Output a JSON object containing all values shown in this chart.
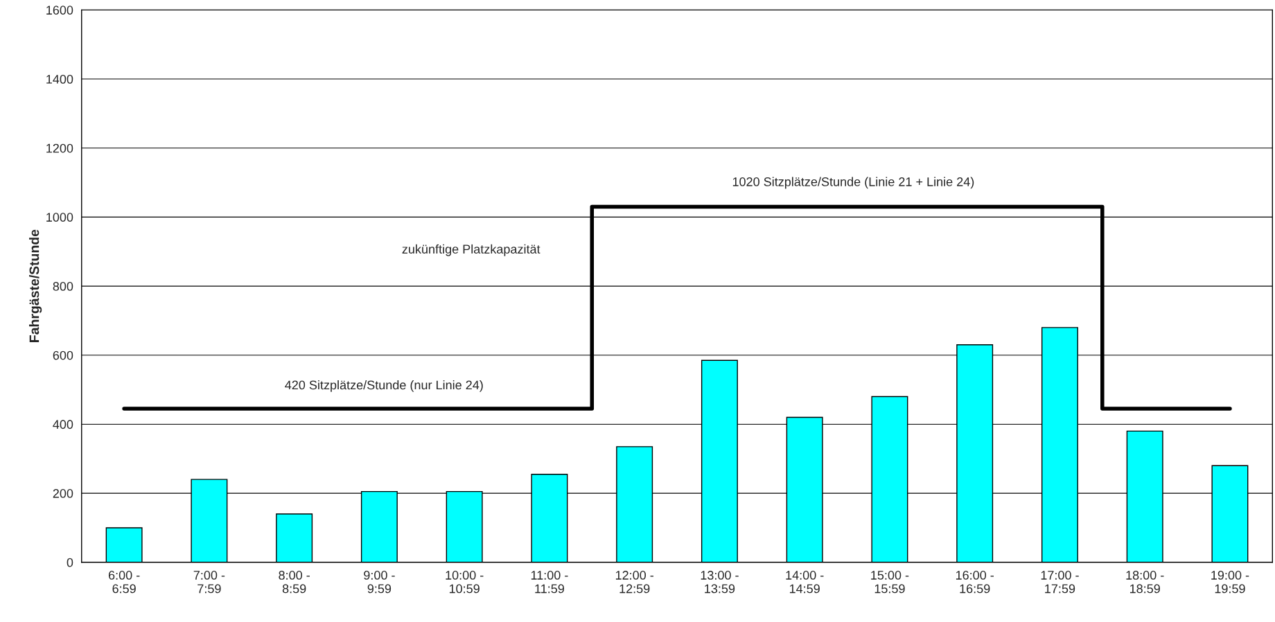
{
  "chart_data": {
    "type": "bar",
    "ylabel": "Fahrgäste/Stunde",
    "categories": [
      "6:00 -\n6:59",
      "7:00 -\n7:59",
      "8:00 -\n8:59",
      "9:00 -\n9:59",
      "10:00 -\n10:59",
      "11:00 -\n11:59",
      "12:00 -\n12:59",
      "13:00 -\n13:59",
      "14:00 -\n14:59",
      "15:00 -\n15:59",
      "16:00 -\n16:59",
      "17:00 -\n17:59",
      "18:00 -\n18:59",
      "19:00 -\n19:59"
    ],
    "series": [
      {
        "color": "#00ffff",
        "values": [
          100,
          240,
          140,
          205,
          205,
          255,
          335,
          585,
          420,
          480,
          630,
          680,
          380,
          280
        ]
      },
      {
        "type": "step",
        "color": "#000000",
        "values": [
          445,
          445,
          445,
          445,
          445,
          445,
          1030,
          1030,
          1030,
          1030,
          1030,
          1030,
          445,
          445
        ]
      }
    ],
    "annotations": [
      "420 Sitzplätze/Stunde (nur Linie 24)",
      "zukünftige Platzkapazität",
      "1020 Sitzplätze/Stunde (Linie 21 + Linie 24)"
    ],
    "ylim": [
      0,
      1600
    ],
    "yticks": [
      0,
      200,
      400,
      600,
      800,
      1000,
      1200,
      1400,
      1600
    ],
    "grid": "y",
    "legend": false
  }
}
